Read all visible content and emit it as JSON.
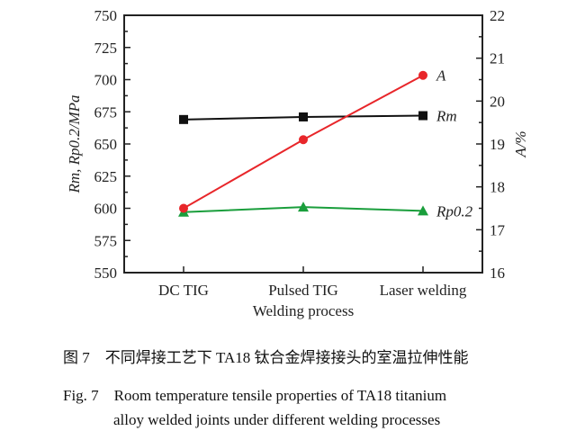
{
  "chart_data": {
    "type": "line",
    "categories": [
      "DC TIG",
      "Pulsed TIG",
      "Laser welding"
    ],
    "xlabel": "Welding process",
    "ylabel_left": "Rm, Rp0.2/MPa",
    "ylabel_right": "A/%",
    "ylim_left": [
      550,
      750
    ],
    "ylim_right": [
      16,
      22
    ],
    "yticks_left": [
      550,
      575,
      600,
      625,
      650,
      675,
      700,
      725,
      750
    ],
    "yticks_right": [
      16,
      17,
      18,
      19,
      20,
      21,
      22
    ],
    "grid": false,
    "series": [
      {
        "name": "Rm",
        "axis": "left",
        "color": "#111111",
        "marker": "square",
        "values": [
          669,
          671,
          672
        ]
      },
      {
        "name": "Rp0.2",
        "axis": "left",
        "color": "#1a9e3c",
        "marker": "triangle",
        "values": [
          597,
          601,
          598
        ]
      },
      {
        "name": "A",
        "axis": "right",
        "color": "#e8262a",
        "marker": "circle",
        "values": [
          17.5,
          19.1,
          20.6
        ]
      }
    ]
  },
  "caption": {
    "cn": "图 7　不同焊接工艺下 TA18 钛合金焊接接头的室温拉伸性能",
    "en_line1": "Fig. 7　Room temperature tensile properties of TA18 titanium",
    "en_line2": "alloy welded joints under different welding processes"
  }
}
